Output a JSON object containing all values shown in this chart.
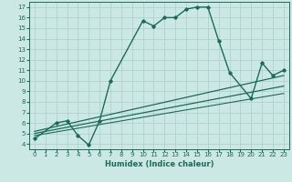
{
  "xlabel": "Humidex (Indice chaleur)",
  "ylabel": "",
  "xlim": [
    -0.5,
    23.5
  ],
  "ylim": [
    3.5,
    17.5
  ],
  "xticks": [
    0,
    1,
    2,
    3,
    4,
    5,
    6,
    7,
    8,
    9,
    10,
    11,
    12,
    13,
    14,
    15,
    16,
    17,
    18,
    19,
    20,
    21,
    22,
    23
  ],
  "yticks": [
    4,
    5,
    6,
    7,
    8,
    9,
    10,
    11,
    12,
    13,
    14,
    15,
    16,
    17
  ],
  "bg_color": "#cce8e4",
  "grid_color": "#aacfcb",
  "line_color": "#1a6b5a",
  "lines": [
    {
      "x": [
        0,
        2,
        3,
        4,
        5,
        6,
        7,
        10,
        11,
        12,
        13,
        14,
        15,
        16,
        17,
        18,
        20,
        21,
        22,
        23
      ],
      "y": [
        4.5,
        6.0,
        6.2,
        4.8,
        3.9,
        6.2,
        10.0,
        15.7,
        15.2,
        16.0,
        16.0,
        16.8,
        17.0,
        17.0,
        13.8,
        10.8,
        8.3,
        11.7,
        10.5,
        11.0
      ],
      "style": "-",
      "marker": "D",
      "markersize": 1.8,
      "linewidth": 1.0
    },
    {
      "x": [
        0,
        23
      ],
      "y": [
        5.2,
        10.5
      ],
      "style": "-",
      "marker": null,
      "markersize": 0,
      "linewidth": 0.9
    },
    {
      "x": [
        0,
        23
      ],
      "y": [
        5.0,
        9.5
      ],
      "style": "-",
      "marker": null,
      "markersize": 0,
      "linewidth": 0.9
    },
    {
      "x": [
        0,
        23
      ],
      "y": [
        4.8,
        8.8
      ],
      "style": "-",
      "marker": null,
      "markersize": 0,
      "linewidth": 0.8
    }
  ]
}
